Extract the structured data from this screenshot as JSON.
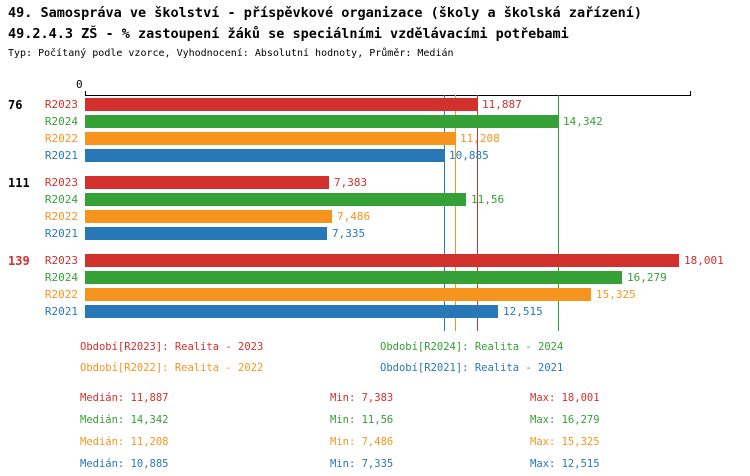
{
  "header": {
    "title_line1": "49. Samospráva ve školství - příspěvkové organizace (školy a školská zařízení)",
    "title_line2": "49.2.4.3 ZŠ - % zastoupení žáků se speciálními vzdělávacími potřebami",
    "subtitle": "Typ: Počítaný podle vzorce, Vyhodnocení: Absolutní hodnoty, Průměr: Medián"
  },
  "colors": {
    "r2023": "#d2302c",
    "r2024": "#35a035",
    "r2022": "#f7941d",
    "r2021": "#2878b8"
  },
  "axis": {
    "zero_label": "0",
    "max_value": 18.3
  },
  "chart_data": {
    "type": "bar",
    "orientation": "horizontal",
    "series_order": [
      "R2023",
      "R2024",
      "R2022",
      "R2021"
    ],
    "groups": [
      {
        "id": "76",
        "highlighted": false,
        "bars": [
          {
            "series": "R2023",
            "value": 11.887,
            "label": "11,887"
          },
          {
            "series": "R2024",
            "value": 14.342,
            "label": "14,342"
          },
          {
            "series": "R2022",
            "value": 11.208,
            "label": "11,208"
          },
          {
            "series": "R2021",
            "value": 10.885,
            "label": "10,885"
          }
        ]
      },
      {
        "id": "111",
        "highlighted": false,
        "bars": [
          {
            "series": "R2023",
            "value": 7.383,
            "label": "7,383"
          },
          {
            "series": "R2024",
            "value": 11.56,
            "label": "11,56"
          },
          {
            "series": "R2022",
            "value": 7.486,
            "label": "7,486"
          },
          {
            "series": "R2021",
            "value": 7.335,
            "label": "7,335"
          }
        ]
      },
      {
        "id": "139",
        "highlighted": true,
        "bars": [
          {
            "series": "R2023",
            "value": 18.001,
            "label": "18,001"
          },
          {
            "series": "R2024",
            "value": 16.279,
            "label": "16,279"
          },
          {
            "series": "R2022",
            "value": 15.325,
            "label": "15,325"
          },
          {
            "series": "R2021",
            "value": 12.515,
            "label": "12,515"
          }
        ]
      }
    ],
    "median_lines": [
      {
        "series": "R2021",
        "value": 10.885
      },
      {
        "series": "R2022",
        "value": 11.208
      },
      {
        "series": "R2023",
        "value": 11.887
      },
      {
        "series": "R2024",
        "value": 14.342
      }
    ]
  },
  "legend": [
    {
      "series": "R2023",
      "label": "Období[R2023]: Realita - 2023"
    },
    {
      "series": "R2024",
      "label": "Období[R2024]: Realita - 2024"
    },
    {
      "series": "R2022",
      "label": "Období[R2022]: Realita - 2022"
    },
    {
      "series": "R2021",
      "label": "Období[R2021]: Realita - 2021"
    }
  ],
  "stats": [
    {
      "series": "R2023",
      "median": "Medián: 11,887",
      "min": "Min: 7,383",
      "max": "Max: 18,001"
    },
    {
      "series": "R2024",
      "median": "Medián: 14,342",
      "min": "Min: 11,56",
      "max": "Max: 16,279"
    },
    {
      "series": "R2022",
      "median": "Medián: 11,208",
      "min": "Min: 7,486",
      "max": "Max: 15,325"
    },
    {
      "series": "R2021",
      "median": "Medián: 10,885",
      "min": "Min: 7,335",
      "max": "Max: 12,515"
    }
  ]
}
